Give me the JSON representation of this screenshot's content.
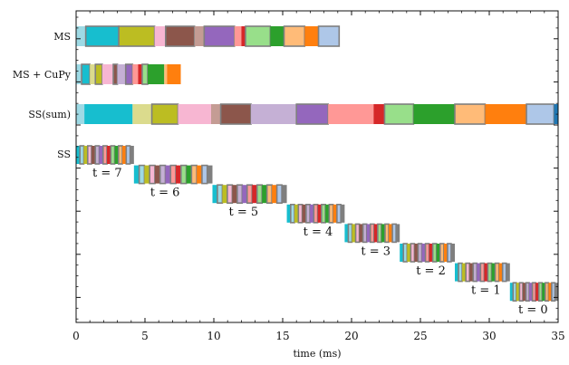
{
  "chart_data": {
    "type": "gantt",
    "xlabel": "time (ms)",
    "xlim": [
      0,
      35
    ],
    "xticks": [
      0,
      5,
      10,
      15,
      20,
      25,
      30,
      35
    ],
    "xtick_labels": [
      "0",
      "5",
      "10",
      "15",
      "20",
      "25",
      "30",
      "35"
    ],
    "row_labels": [
      "MS",
      "MS + CuPy",
      "SS(sum)",
      "SS"
    ],
    "palette": [
      "#9edae5",
      "#17becf",
      "#dbdb8d",
      "#bcbd22",
      "#f7b6d2",
      "#c49c94",
      "#8c564b",
      "#c5b0d5",
      "#9467bd",
      "#ff9896",
      "#d62728",
      "#98df8a",
      "#2ca02c",
      "#ffbb78",
      "#ff7f0e",
      "#aec7e8",
      "#1f77b4",
      "#7f7f7f"
    ],
    "series": [
      {
        "name": "MS",
        "row": 0,
        "segments": [
          {
            "start": 0.0,
            "end": 0.7,
            "color": 0
          },
          {
            "start": 0.7,
            "end": 3.1,
            "color": 1,
            "outlined": true
          },
          {
            "start": 3.1,
            "end": 5.7,
            "color": 3,
            "outlined": true
          },
          {
            "start": 5.7,
            "end": 6.5,
            "color": 4
          },
          {
            "start": 6.5,
            "end": 8.6,
            "color": 6,
            "outlined": true
          },
          {
            "start": 8.6,
            "end": 9.3,
            "color": 5
          },
          {
            "start": 9.3,
            "end": 11.5,
            "color": 8,
            "outlined": true
          },
          {
            "start": 11.5,
            "end": 12.0,
            "color": 9
          },
          {
            "start": 12.0,
            "end": 12.3,
            "color": 10
          },
          {
            "start": 12.3,
            "end": 14.1,
            "color": 11,
            "outlined": true
          },
          {
            "start": 14.1,
            "end": 15.1,
            "color": 12
          },
          {
            "start": 15.1,
            "end": 16.6,
            "color": 13,
            "outlined": true
          },
          {
            "start": 16.6,
            "end": 17.6,
            "color": 14
          },
          {
            "start": 17.6,
            "end": 19.1,
            "color": 15,
            "outlined": true
          }
        ]
      },
      {
        "name": "MS + CuPy",
        "row": 1,
        "segments": [
          {
            "start": 0.0,
            "end": 0.4,
            "color": 0
          },
          {
            "start": 0.4,
            "end": 1.0,
            "color": 1,
            "outlined": true
          },
          {
            "start": 1.0,
            "end": 1.4,
            "color": 2
          },
          {
            "start": 1.4,
            "end": 1.9,
            "color": 3,
            "outlined": true
          },
          {
            "start": 1.9,
            "end": 2.7,
            "color": 4
          },
          {
            "start": 2.7,
            "end": 3.0,
            "color": 6,
            "outlined": true
          },
          {
            "start": 3.0,
            "end": 3.6,
            "color": 7
          },
          {
            "start": 3.6,
            "end": 4.1,
            "color": 8,
            "outlined": true
          },
          {
            "start": 4.1,
            "end": 4.5,
            "color": 9
          },
          {
            "start": 4.5,
            "end": 4.8,
            "color": 10
          },
          {
            "start": 4.8,
            "end": 5.2,
            "color": 11,
            "outlined": true
          },
          {
            "start": 5.2,
            "end": 6.4,
            "color": 12
          },
          {
            "start": 6.4,
            "end": 6.6,
            "color": 13
          },
          {
            "start": 6.6,
            "end": 7.6,
            "color": 14
          }
        ]
      },
      {
        "name": "SS(sum)",
        "row": 2,
        "segments": [
          {
            "start": 0.0,
            "end": 0.6,
            "color": 0
          },
          {
            "start": 0.6,
            "end": 4.1,
            "color": 1
          },
          {
            "start": 4.1,
            "end": 5.5,
            "color": 2
          },
          {
            "start": 5.5,
            "end": 7.4,
            "color": 3,
            "outlined": true
          },
          {
            "start": 7.4,
            "end": 9.8,
            "color": 4
          },
          {
            "start": 9.8,
            "end": 10.5,
            "color": 5
          },
          {
            "start": 10.5,
            "end": 12.7,
            "color": 6,
            "outlined": true
          },
          {
            "start": 12.7,
            "end": 16.0,
            "color": 7
          },
          {
            "start": 16.0,
            "end": 18.3,
            "color": 8,
            "outlined": true
          },
          {
            "start": 18.3,
            "end": 21.6,
            "color": 9
          },
          {
            "start": 21.6,
            "end": 22.4,
            "color": 10
          },
          {
            "start": 22.4,
            "end": 24.5,
            "color": 11,
            "outlined": true
          },
          {
            "start": 24.5,
            "end": 27.5,
            "color": 12
          },
          {
            "start": 27.5,
            "end": 29.7,
            "color": 13,
            "outlined": true
          },
          {
            "start": 29.7,
            "end": 32.7,
            "color": 14
          },
          {
            "start": 32.7,
            "end": 34.7,
            "color": 15,
            "outlined": true
          },
          {
            "start": 34.7,
            "end": 35.0,
            "color": 16
          }
        ]
      }
    ],
    "ss_steps": [
      {
        "label": "t = 7",
        "start": 0.0,
        "end": 4.2,
        "y": 0
      },
      {
        "label": "t = 6",
        "start": 4.2,
        "end": 9.9,
        "y": 1
      },
      {
        "label": "t = 5",
        "start": 9.9,
        "end": 15.3,
        "y": 2
      },
      {
        "label": "t = 4",
        "start": 15.3,
        "end": 19.5,
        "y": 3
      },
      {
        "label": "t = 3",
        "start": 19.5,
        "end": 23.5,
        "y": 4
      },
      {
        "label": "t = 2",
        "start": 23.5,
        "end": 27.5,
        "y": 5
      },
      {
        "label": "t = 1",
        "start": 27.5,
        "end": 31.5,
        "y": 6
      },
      {
        "label": "t = 0",
        "start": 31.5,
        "end": 35.0,
        "y": 7
      }
    ],
    "ss_segment_colors": [
      1,
      0,
      3,
      4,
      6,
      7,
      8,
      9,
      10,
      11,
      12,
      13,
      14,
      15,
      17
    ]
  }
}
